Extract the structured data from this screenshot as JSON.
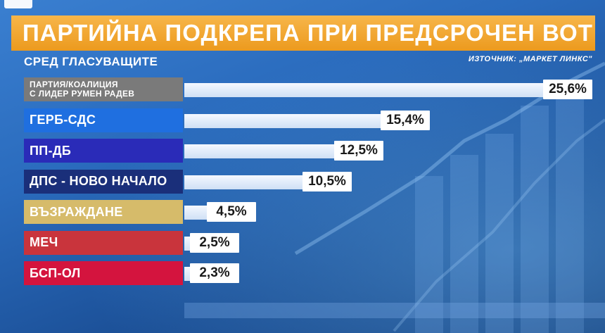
{
  "title": "ПАРТИЙНА ПОДКРЕПА ПРИ ПРЕДСРОЧЕН ВОТ",
  "subtitle": "СРЕД ГЛАСУВАЩИТЕ",
  "source": "ИЗТОЧНИК: „МАРКЕТ ЛИНКС\"",
  "colors": {
    "title_bar": "#f0a531",
    "bar": "#e3edfb",
    "background": "#2a6bbd"
  },
  "chart_data": {
    "type": "bar",
    "orientation": "horizontal",
    "title": "ПАРТИЙНА ПОДКРЕПА ПРИ ПРЕДСРОЧЕН ВОТ",
    "subtitle": "СРЕД ГЛАСУВАЩИТЕ",
    "xlim": [
      0,
      25.6
    ],
    "categories": [
      "ПАРТИЯ/КОАЛИЦИЯ С ЛИДЕР РУМЕН РАДЕВ",
      "ГЕРБ-СДС",
      "ПП-ДБ",
      "ДПС - НОВО НАЧАЛО",
      "ВЪЗРАЖДАНЕ",
      "МЕЧ",
      "БСП-ОЛ"
    ],
    "values": [
      25.6,
      15.4,
      12.5,
      10.5,
      4.5,
      2.5,
      2.3
    ],
    "value_labels": [
      "25,6%",
      "15,4%",
      "12,5%",
      "10,5%",
      "4,5%",
      "2,5%",
      "2,3%"
    ],
    "label_lines": [
      [
        "ПАРТИЯ/КОАЛИЦИЯ",
        "С ЛИДЕР РУМЕН РАДЕВ"
      ],
      [
        "ГЕРБ-СДС"
      ],
      [
        "ПП-ДБ"
      ],
      [
        "ДПС - НОВО НАЧАЛО"
      ],
      [
        "ВЪЗРАЖДАНЕ"
      ],
      [
        "МЕЧ"
      ],
      [
        "БСП-ОЛ"
      ]
    ],
    "label_colors": [
      "#7a7a7a",
      "#1f6fe0",
      "#2a2bb8",
      "#1a2f7a",
      "#d6bb6a",
      "#c9343c",
      "#d4143e"
    ]
  }
}
